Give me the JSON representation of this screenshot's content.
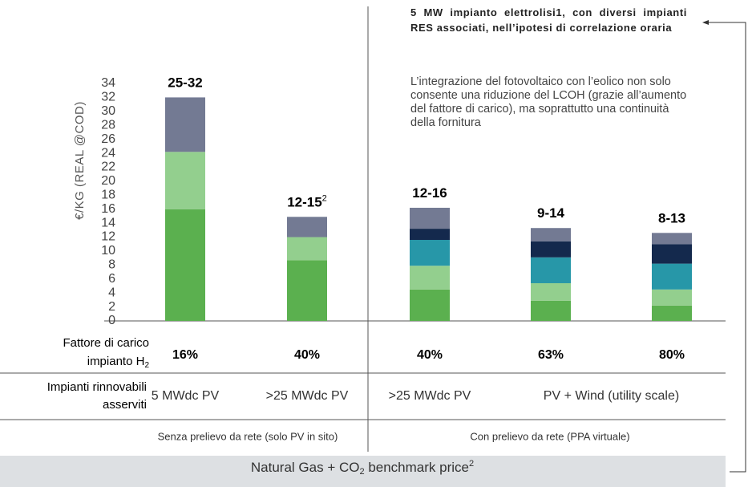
{
  "chart_data": {
    "type": "stacked_bar",
    "y_label": "€/KG (REAL @COD)",
    "ylim": [
      0,
      34
    ],
    "yticks": [
      0,
      2,
      4,
      6,
      8,
      10,
      12,
      14,
      16,
      18,
      20,
      22,
      24,
      26,
      28,
      30,
      32,
      34
    ],
    "grid": false,
    "series": [
      {
        "color": "#5bb04f",
        "values": [
          16,
          8.7,
          4.5,
          2.9,
          2.2
        ]
      },
      {
        "color": "#93cf8e",
        "values": [
          8.2,
          3.3,
          3.4,
          2.5,
          2.3
        ]
      },
      {
        "color": "#2797a8",
        "values": [
          null,
          null,
          3.7,
          3.7,
          3.7
        ]
      },
      {
        "color": "#14294d",
        "values": [
          null,
          null,
          1.6,
          2.3,
          2.8
        ]
      },
      {
        "color": "#737a93",
        "values": [
          7.8,
          2.9,
          3.0,
          1.9,
          1.6
        ]
      }
    ],
    "bar_labels": [
      "25-32",
      "12-15",
      "12-16",
      "9-14",
      "8-13"
    ],
    "bar_label_notes": [
      null,
      "2",
      null,
      null,
      null
    ],
    "load_factor_label": [
      "Fattore di carico",
      "impianto H"
    ],
    "load_factor_label_sub": "2",
    "load_factors": [
      "16%",
      "40%",
      "40%",
      "63%",
      "80%"
    ],
    "plants_label": [
      "Impianti rinnovabili",
      "asserviti"
    ],
    "plants": [
      "5 MWdc PV",
      ">25 MWdc PV",
      ">25 MWdc PV",
      "PV + Wind (utility scale)"
    ],
    "groups": [
      "Senza prelievo da rete (solo PV in sito)",
      "Con prelievo da rete (PPA virtuale)"
    ],
    "annotation_title": "5 MW impianto elettrolisi1, con diversi impianti RES associati, nell’ipotesi di correlazione oraria",
    "annotation_text": "L’integrazione  del fotovoltaico con l’eolico non solo consente una riduzione del LCOH (grazie all’aumento del fattore di carico), ma soprattutto una continuità della fornitura",
    "footer": {
      "text": "Natural Gas + CO",
      "sub": "2",
      "rest": " benchmark price",
      "sup": "2"
    }
  }
}
